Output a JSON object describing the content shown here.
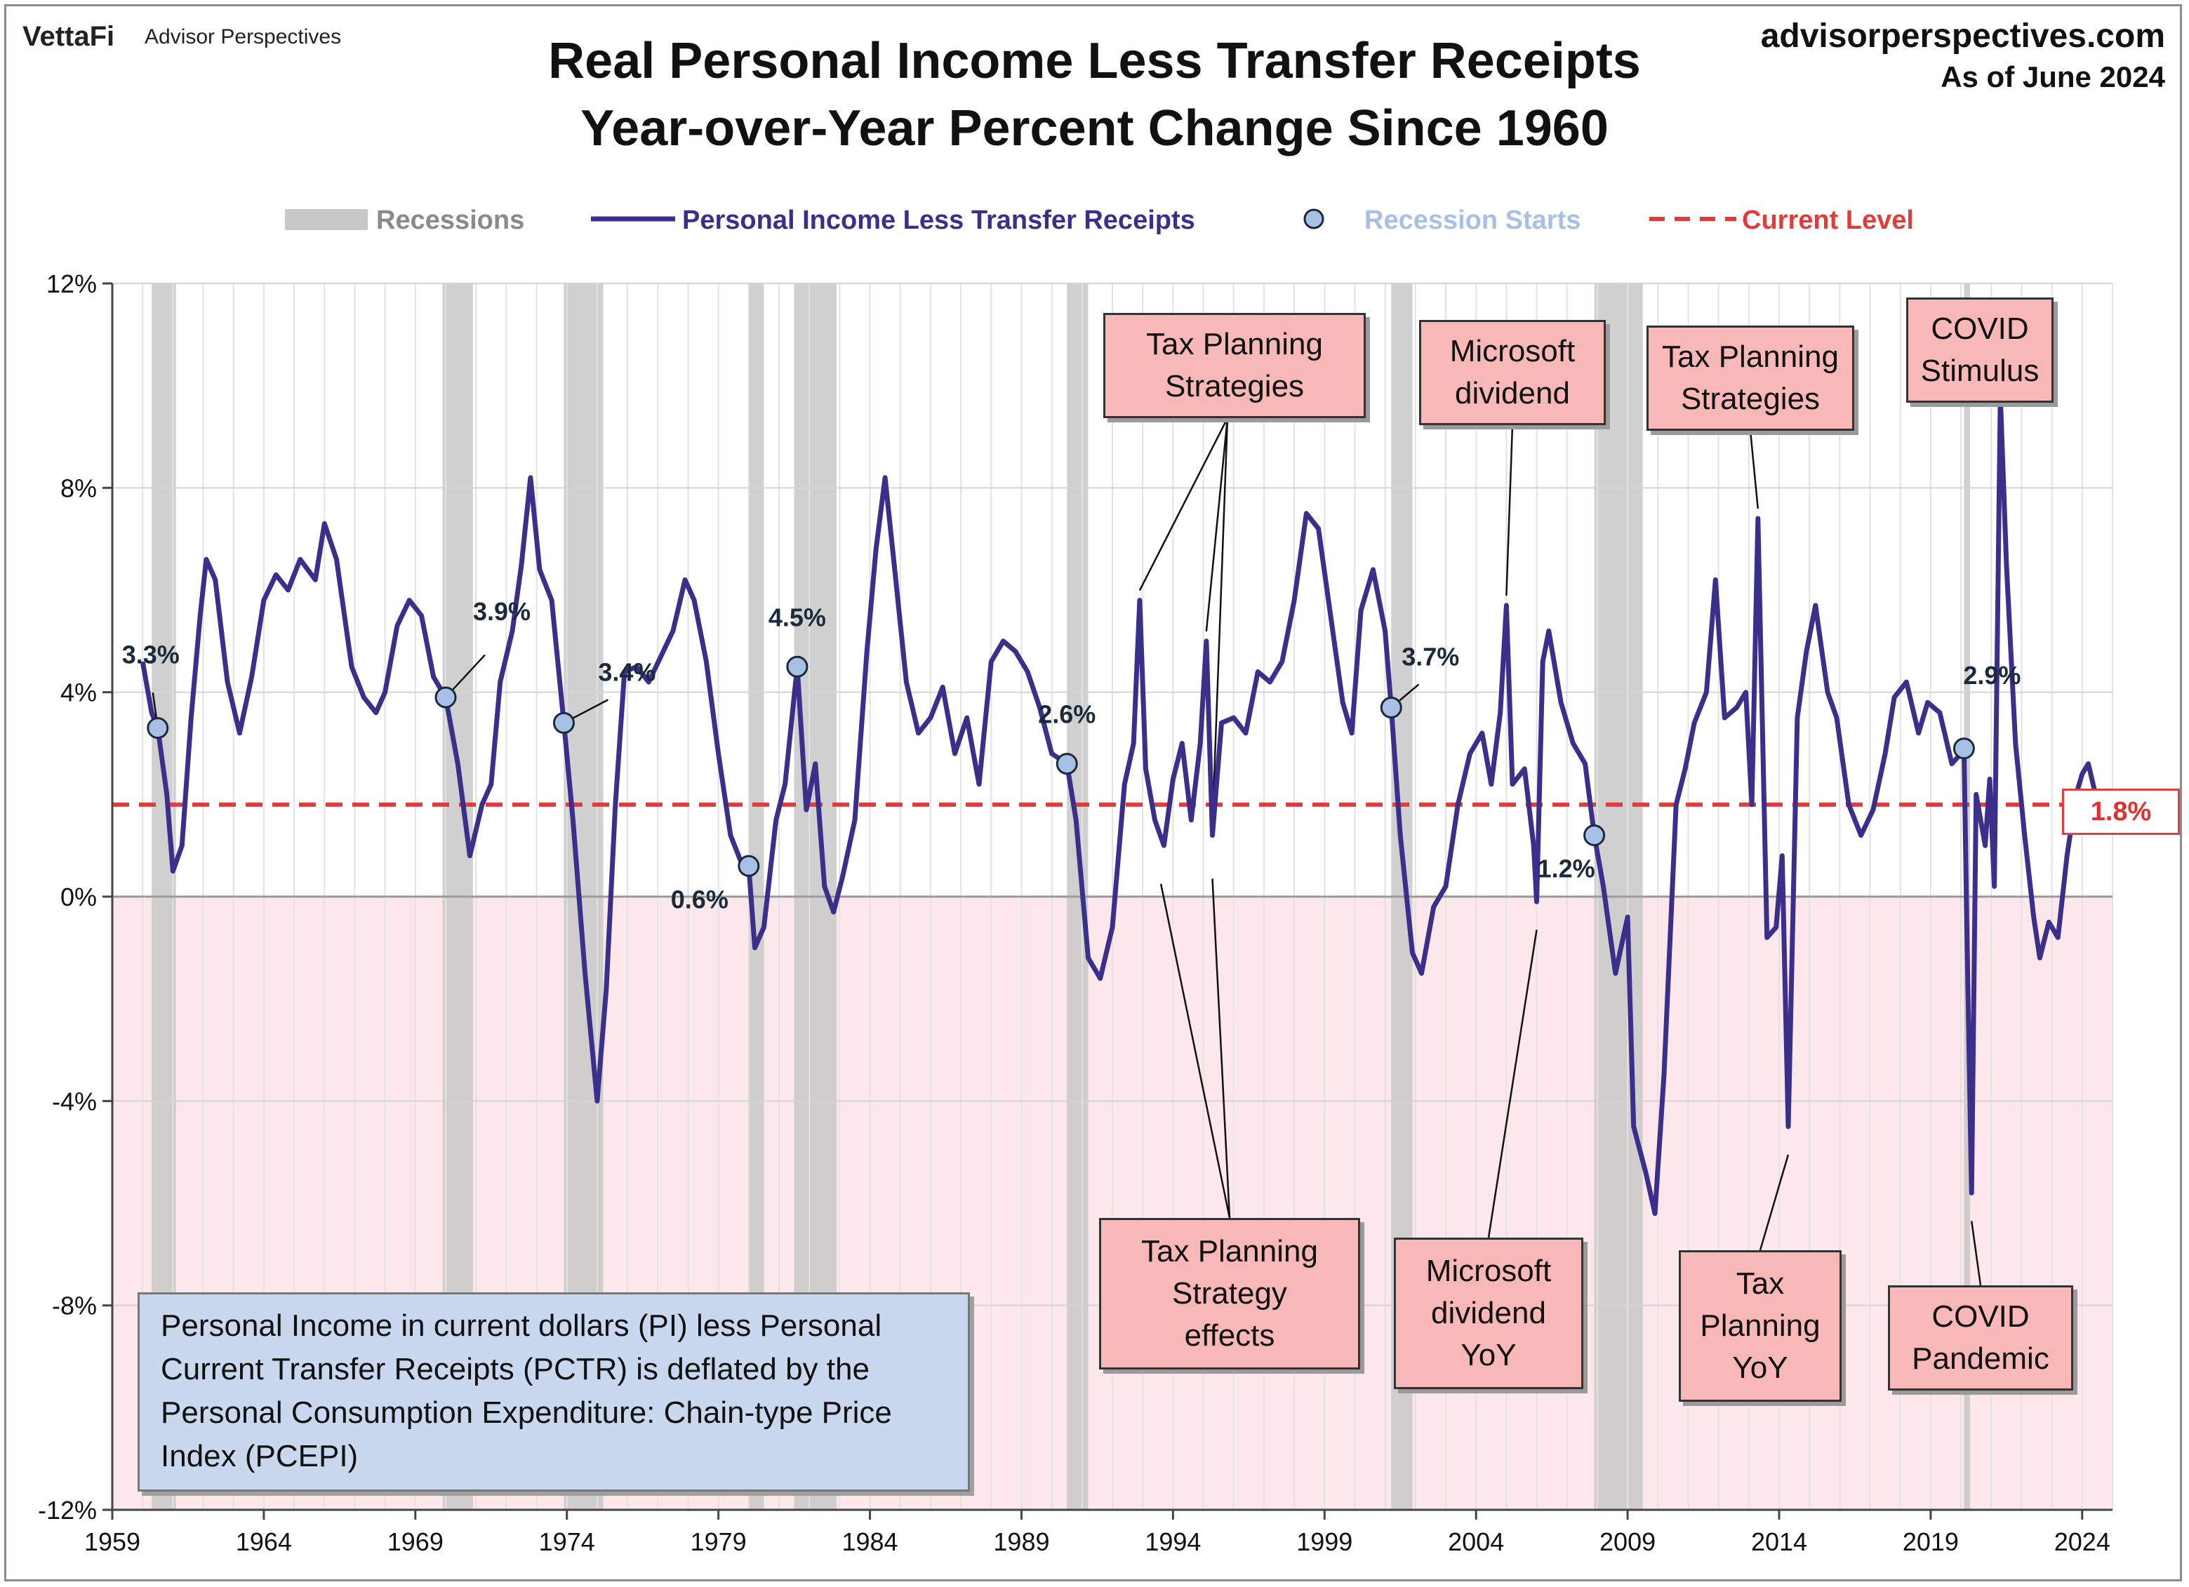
{
  "header": {
    "brand": "VettaFi",
    "brand_sub": "Advisor Perspectives",
    "site": "advisorperspectives.com",
    "as_of": "As of June 2024",
    "title_line1": "Real Personal Income Less Transfer Receipts",
    "title_line2": "Year-over-Year Percent Change Since 1960"
  },
  "legend": {
    "recessions": "Recessions",
    "series": "Personal Income Less Transfer Receipts",
    "starts": "Recession Starts",
    "current": "Current Level"
  },
  "colors": {
    "line": "#3b2f8c",
    "recession": "#c8c8c8",
    "negative_band": "#fce8ea",
    "current": "#e03c3c",
    "marker": "#a9c0e6",
    "annotation": "#f8b8b8",
    "note": "#c9d8ee"
  },
  "current_label": "1.8%",
  "note": "Personal Income in current dollars  (PI) less Personal Current Transfer Receipts (PCTR) is deflated by the Personal Consumption Expenditure: Chain-type Price Index (PCEPI)",
  "annotations": [
    {
      "id": "tax-planning-strategies-1",
      "text": "Tax Planning\nStrategies"
    },
    {
      "id": "microsoft-dividend",
      "text": "Microsoft\ndividend"
    },
    {
      "id": "tax-planning-strategies-2",
      "text": "Tax Planning\nStrategies"
    },
    {
      "id": "covid-stimulus",
      "text": "COVID\nStimulus"
    },
    {
      "id": "tax-planning-strategy-effects",
      "text": "Tax Planning\nStrategy\neffects"
    },
    {
      "id": "microsoft-dividend-yoy",
      "text": "Microsoft\ndividend\nYoY"
    },
    {
      "id": "tax-planning-yoy",
      "text": "Tax\nPlanning\nYoY"
    },
    {
      "id": "covid-pandemic",
      "text": "COVID\nPandemic"
    }
  ],
  "chart_data": {
    "type": "line",
    "x_unit": "year",
    "xlim": [
      1959,
      2025
    ],
    "ylim": [
      -12,
      12
    ],
    "yticks": [
      12,
      8,
      4,
      0,
      -4,
      -8,
      -12
    ],
    "ytick_labels": [
      "12%",
      "8%",
      "4%",
      "0%",
      "-4%",
      "-8%",
      "-12%"
    ],
    "xticks": [
      1959,
      1964,
      1969,
      1974,
      1979,
      1984,
      1989,
      1994,
      1999,
      2004,
      2009,
      2014,
      2019,
      2024
    ],
    "xtick_labels": [
      "1959",
      "1964",
      "1969",
      "1974",
      "1979",
      "1984",
      "1989",
      "1994",
      "1999",
      "2004",
      "2009",
      "2014",
      "2019",
      "2024"
    ],
    "grid": true,
    "current_level": 1.8,
    "recessions": [
      [
        1960.3,
        1961.1
      ],
      [
        1969.9,
        1970.9
      ],
      [
        1973.9,
        1975.2
      ],
      [
        1980.0,
        1980.5
      ],
      [
        1981.5,
        1982.9
      ],
      [
        1990.5,
        1991.2
      ],
      [
        2001.2,
        2001.9
      ],
      [
        2007.9,
        2009.5
      ],
      [
        2020.1,
        2020.3
      ]
    ],
    "recession_starts": [
      {
        "x": 1960.5,
        "y": 3.3,
        "label": "3.3%"
      },
      {
        "x": 1970.0,
        "y": 3.9,
        "label": "3.9%"
      },
      {
        "x": 1973.9,
        "y": 3.4,
        "label": "3.4%"
      },
      {
        "x": 1980.0,
        "y": 0.6,
        "label": "0.6%"
      },
      {
        "x": 1981.6,
        "y": 4.5,
        "label": "4.5%"
      },
      {
        "x": 1990.5,
        "y": 2.6,
        "label": "2.6%"
      },
      {
        "x": 2001.2,
        "y": 3.7,
        "label": "3.7%"
      },
      {
        "x": 2007.9,
        "y": 1.2,
        "label": "1.2%"
      },
      {
        "x": 2020.1,
        "y": 2.9,
        "label": "2.9%"
      }
    ],
    "series": [
      {
        "name": "Personal Income Less Transfer Receipts",
        "points": [
          [
            1960.0,
            4.6
          ],
          [
            1960.3,
            3.6
          ],
          [
            1960.5,
            3.3
          ],
          [
            1960.8,
            2.0
          ],
          [
            1961.0,
            0.5
          ],
          [
            1961.3,
            1.0
          ],
          [
            1961.6,
            3.5
          ],
          [
            1961.9,
            5.5
          ],
          [
            1962.1,
            6.6
          ],
          [
            1962.4,
            6.2
          ],
          [
            1962.8,
            4.2
          ],
          [
            1963.2,
            3.2
          ],
          [
            1963.6,
            4.3
          ],
          [
            1964.0,
            5.8
          ],
          [
            1964.4,
            6.3
          ],
          [
            1964.8,
            6.0
          ],
          [
            1965.2,
            6.6
          ],
          [
            1965.7,
            6.2
          ],
          [
            1966.0,
            7.3
          ],
          [
            1966.4,
            6.6
          ],
          [
            1966.9,
            4.5
          ],
          [
            1967.3,
            3.9
          ],
          [
            1967.7,
            3.6
          ],
          [
            1968.0,
            4.0
          ],
          [
            1968.4,
            5.3
          ],
          [
            1968.8,
            5.8
          ],
          [
            1969.2,
            5.5
          ],
          [
            1969.6,
            4.3
          ],
          [
            1970.0,
            3.9
          ],
          [
            1970.4,
            2.6
          ],
          [
            1970.8,
            0.8
          ],
          [
            1971.2,
            1.8
          ],
          [
            1971.5,
            2.2
          ],
          [
            1971.8,
            4.2
          ],
          [
            1972.2,
            5.2
          ],
          [
            1972.5,
            6.5
          ],
          [
            1972.8,
            8.2
          ],
          [
            1973.1,
            6.4
          ],
          [
            1973.5,
            5.8
          ],
          [
            1973.9,
            3.4
          ],
          [
            1974.2,
            1.5
          ],
          [
            1974.6,
            -1.5
          ],
          [
            1975.0,
            -4.0
          ],
          [
            1975.3,
            -1.8
          ],
          [
            1975.6,
            1.8
          ],
          [
            1975.9,
            4.4
          ],
          [
            1976.3,
            4.5
          ],
          [
            1976.7,
            4.2
          ],
          [
            1977.1,
            4.7
          ],
          [
            1977.5,
            5.2
          ],
          [
            1977.9,
            6.2
          ],
          [
            1978.2,
            5.8
          ],
          [
            1978.6,
            4.6
          ],
          [
            1979.0,
            2.8
          ],
          [
            1979.4,
            1.2
          ],
          [
            1979.8,
            0.6
          ],
          [
            1980.0,
            0.6
          ],
          [
            1980.2,
            -1.0
          ],
          [
            1980.5,
            -0.6
          ],
          [
            1980.9,
            1.5
          ],
          [
            1981.2,
            2.2
          ],
          [
            1981.6,
            4.5
          ],
          [
            1981.9,
            1.7
          ],
          [
            1982.2,
            2.6
          ],
          [
            1982.5,
            0.2
          ],
          [
            1982.8,
            -0.3
          ],
          [
            1983.1,
            0.4
          ],
          [
            1983.5,
            1.5
          ],
          [
            1983.9,
            4.8
          ],
          [
            1984.2,
            6.8
          ],
          [
            1984.5,
            8.2
          ],
          [
            1984.8,
            6.5
          ],
          [
            1985.2,
            4.2
          ],
          [
            1985.6,
            3.2
          ],
          [
            1986.0,
            3.5
          ],
          [
            1986.4,
            4.1
          ],
          [
            1986.8,
            2.8
          ],
          [
            1987.2,
            3.5
          ],
          [
            1987.6,
            2.2
          ],
          [
            1988.0,
            4.6
          ],
          [
            1988.4,
            5.0
          ],
          [
            1988.8,
            4.8
          ],
          [
            1989.2,
            4.4
          ],
          [
            1989.6,
            3.7
          ],
          [
            1990.0,
            2.8
          ],
          [
            1990.5,
            2.6
          ],
          [
            1990.8,
            1.5
          ],
          [
            1991.2,
            -1.2
          ],
          [
            1991.6,
            -1.6
          ],
          [
            1992.0,
            -0.6
          ],
          [
            1992.4,
            2.2
          ],
          [
            1992.7,
            3.0
          ],
          [
            1992.9,
            5.8
          ],
          [
            1993.1,
            2.5
          ],
          [
            1993.4,
            1.5
          ],
          [
            1993.7,
            1.0
          ],
          [
            1994.0,
            2.3
          ],
          [
            1994.3,
            3.0
          ],
          [
            1994.6,
            1.5
          ],
          [
            1994.9,
            3.0
          ],
          [
            1995.1,
            5.0
          ],
          [
            1995.3,
            1.2
          ],
          [
            1995.6,
            3.4
          ],
          [
            1996.0,
            3.5
          ],
          [
            1996.4,
            3.2
          ],
          [
            1996.8,
            4.4
          ],
          [
            1997.2,
            4.2
          ],
          [
            1997.6,
            4.6
          ],
          [
            1998.0,
            5.8
          ],
          [
            1998.4,
            7.5
          ],
          [
            1998.8,
            7.2
          ],
          [
            1999.2,
            5.5
          ],
          [
            1999.6,
            3.8
          ],
          [
            1999.9,
            3.2
          ],
          [
            2000.2,
            5.6
          ],
          [
            2000.6,
            6.4
          ],
          [
            2001.0,
            5.2
          ],
          [
            2001.2,
            3.7
          ],
          [
            2001.5,
            1.2
          ],
          [
            2001.9,
            -1.1
          ],
          [
            2002.2,
            -1.5
          ],
          [
            2002.6,
            -0.2
          ],
          [
            2003.0,
            0.2
          ],
          [
            2003.4,
            1.8
          ],
          [
            2003.8,
            2.8
          ],
          [
            2004.2,
            3.2
          ],
          [
            2004.5,
            2.2
          ],
          [
            2004.8,
            3.6
          ],
          [
            2005.0,
            5.7
          ],
          [
            2005.2,
            2.2
          ],
          [
            2005.6,
            2.5
          ],
          [
            2005.9,
            1.0
          ],
          [
            2006.0,
            -0.1
          ],
          [
            2006.2,
            4.6
          ],
          [
            2006.4,
            5.2
          ],
          [
            2006.8,
            3.8
          ],
          [
            2007.2,
            3.0
          ],
          [
            2007.6,
            2.6
          ],
          [
            2007.9,
            1.2
          ],
          [
            2008.2,
            0.2
          ],
          [
            2008.6,
            -1.5
          ],
          [
            2009.0,
            -0.4
          ],
          [
            2009.2,
            -4.5
          ],
          [
            2009.6,
            -5.4
          ],
          [
            2009.9,
            -6.2
          ],
          [
            2010.2,
            -3.5
          ],
          [
            2010.6,
            1.8
          ],
          [
            2010.9,
            2.5
          ],
          [
            2011.2,
            3.4
          ],
          [
            2011.6,
            4.0
          ],
          [
            2011.9,
            6.2
          ],
          [
            2012.2,
            3.5
          ],
          [
            2012.6,
            3.7
          ],
          [
            2012.9,
            4.0
          ],
          [
            2013.1,
            1.8
          ],
          [
            2013.3,
            7.4
          ],
          [
            2013.6,
            -0.8
          ],
          [
            2013.9,
            -0.6
          ],
          [
            2014.1,
            0.8
          ],
          [
            2014.3,
            -4.5
          ],
          [
            2014.6,
            3.5
          ],
          [
            2014.9,
            4.8
          ],
          [
            2015.2,
            5.7
          ],
          [
            2015.6,
            4.0
          ],
          [
            2015.9,
            3.5
          ],
          [
            2016.3,
            1.8
          ],
          [
            2016.7,
            1.2
          ],
          [
            2017.1,
            1.7
          ],
          [
            2017.5,
            2.8
          ],
          [
            2017.8,
            3.9
          ],
          [
            2018.2,
            4.2
          ],
          [
            2018.6,
            3.2
          ],
          [
            2018.9,
            3.8
          ],
          [
            2019.3,
            3.6
          ],
          [
            2019.7,
            2.6
          ],
          [
            2020.0,
            2.8
          ],
          [
            2020.1,
            2.9
          ],
          [
            2020.2,
            -0.8
          ],
          [
            2020.35,
            -5.8
          ],
          [
            2020.5,
            2.0
          ],
          [
            2020.8,
            1.0
          ],
          [
            2020.95,
            2.3
          ],
          [
            2021.1,
            0.2
          ],
          [
            2021.3,
            9.8
          ],
          [
            2021.5,
            6.5
          ],
          [
            2021.8,
            3.0
          ],
          [
            2022.1,
            1.2
          ],
          [
            2022.4,
            -0.4
          ],
          [
            2022.6,
            -1.2
          ],
          [
            2022.9,
            -0.5
          ],
          [
            2023.2,
            -0.8
          ],
          [
            2023.5,
            0.8
          ],
          [
            2023.8,
            2.0
          ],
          [
            2024.0,
            2.4
          ],
          [
            2024.2,
            2.6
          ],
          [
            2024.4,
            2.1
          ],
          [
            2024.5,
            1.8
          ]
        ]
      }
    ]
  }
}
